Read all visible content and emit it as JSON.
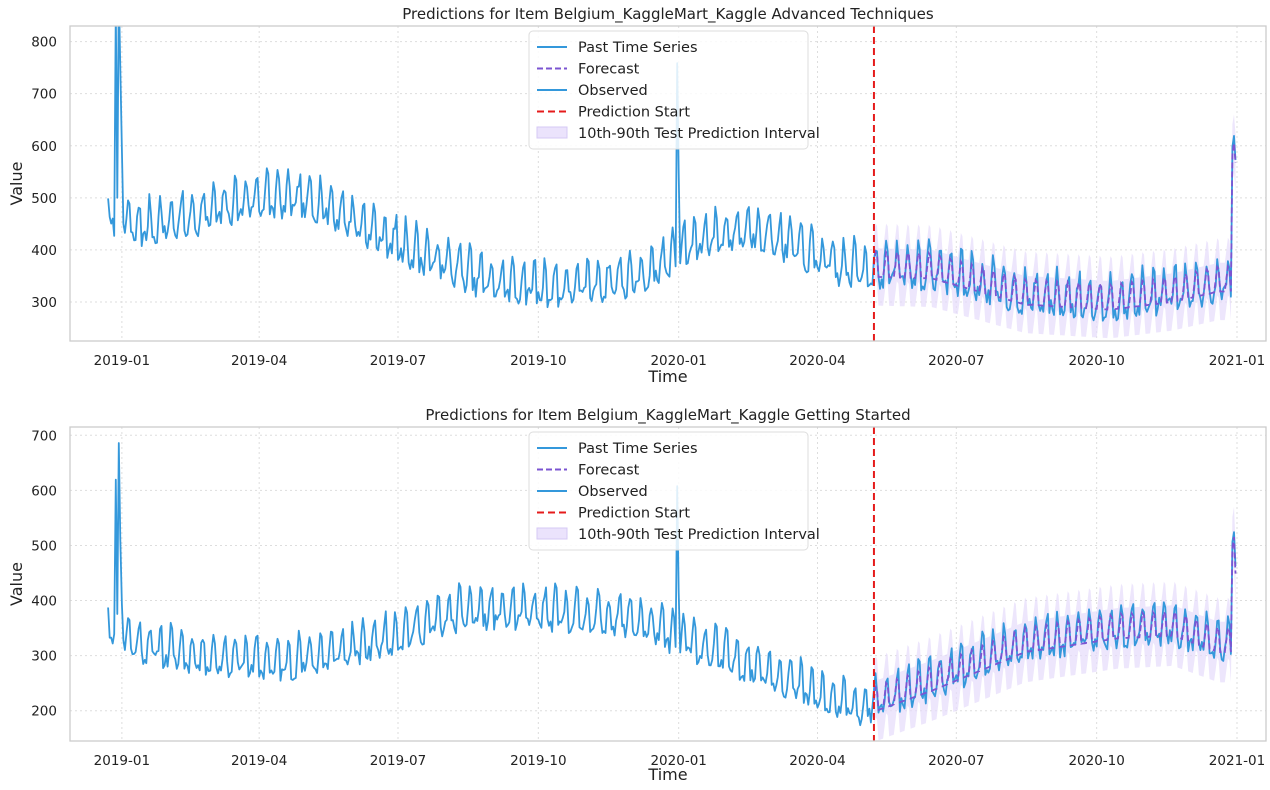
{
  "colors": {
    "observed": "#3498db",
    "past": "#3498db",
    "forecast": "#7b54d2",
    "prediction_start": "#e51b1b",
    "interval_fill": "#e6dcfb",
    "grid": "#dddddd",
    "axes_border": "#cccccc"
  },
  "chart_data": [
    {
      "type": "line",
      "title": "Predictions for Item Belgium_KaggleMart_Kaggle Advanced Techniques",
      "xlabel": "Time",
      "ylabel": "Value",
      "x_axis_type": "date",
      "xlim": [
        "2018-11-28",
        "2021-01-20"
      ],
      "ylim": [
        225,
        830
      ],
      "x_ticks": [
        "2019-01-01",
        "2019-04-01",
        "2019-07-01",
        "2019-10-01",
        "2020-01-01",
        "2020-04-01",
        "2020-07-01",
        "2020-10-01",
        "2021-01-01"
      ],
      "x_tick_labels": [
        "2019-01",
        "2019-04",
        "2019-07",
        "2019-10",
        "2020-01",
        "2020-04",
        "2020-07",
        "2020-10",
        "2021-01"
      ],
      "y_ticks": [
        300,
        400,
        500,
        600,
        700,
        800
      ],
      "y_tick_labels": [
        "300",
        "400",
        "500",
        "600",
        "700",
        "800"
      ],
      "grid": true,
      "legend_position": "top-center",
      "legend": [
        "Past Time Series",
        "Forecast",
        "Observed",
        "Prediction Start",
        "10th-90th Test Prediction Interval"
      ],
      "prediction_start": "2020-05-08",
      "series_params": {
        "start": "2018-12-23",
        "split": "2020-05-08",
        "end": "2020-12-31",
        "anchors": [
          [
            "2018-12-23",
            470
          ],
          [
            "2019-01-10",
            440
          ],
          [
            "2019-02-15",
            460
          ],
          [
            "2019-04-01",
            500
          ],
          [
            "2019-05-10",
            490
          ],
          [
            "2019-07-01",
            410
          ],
          [
            "2019-09-01",
            335
          ],
          [
            "2019-10-20",
            325
          ],
          [
            "2019-12-10",
            350
          ],
          [
            "2020-01-15",
            420
          ],
          [
            "2020-02-20",
            440
          ],
          [
            "2020-04-15",
            365
          ],
          [
            "2020-06-15",
            360
          ],
          [
            "2020-08-15",
            310
          ],
          [
            "2020-10-10",
            300
          ],
          [
            "2020-11-20",
            315
          ],
          [
            "2020-12-20",
            335
          ]
        ],
        "weekly_amplitude": 60,
        "spikes": [
          [
            "2018-12-28",
            380
          ],
          [
            "2018-12-30",
            420
          ],
          [
            "2018-12-31",
            330
          ],
          [
            "2019-01-01",
            140
          ],
          [
            "2019-12-31",
            380
          ],
          [
            "2020-01-01",
            180
          ],
          [
            "2020-12-29",
            280
          ],
          [
            "2020-12-30",
            300
          ],
          [
            "2020-12-31",
            260
          ]
        ],
        "noise": 18,
        "seed": 7
      }
    },
    {
      "type": "line",
      "title": "Predictions for Item Belgium_KaggleMart_Kaggle Getting Started",
      "xlabel": "Time",
      "ylabel": "Value",
      "x_axis_type": "date",
      "xlim": [
        "2018-11-28",
        "2021-01-20"
      ],
      "ylim": [
        145,
        715
      ],
      "x_ticks": [
        "2019-01-01",
        "2019-04-01",
        "2019-07-01",
        "2019-10-01",
        "2020-01-01",
        "2020-04-01",
        "2020-07-01",
        "2020-10-01",
        "2021-01-01"
      ],
      "x_tick_labels": [
        "2019-01",
        "2019-04",
        "2019-07",
        "2019-10",
        "2020-01",
        "2020-04",
        "2020-07",
        "2020-10",
        "2021-01"
      ],
      "y_ticks": [
        200,
        300,
        400,
        500,
        600,
        700
      ],
      "y_tick_labels": [
        "200",
        "300",
        "400",
        "500",
        "600",
        "700"
      ],
      "grid": true,
      "legend_position": "top-center",
      "legend": [
        "Past Time Series",
        "Forecast",
        "Observed",
        "Prediction Start",
        "10th-90th Test Prediction Interval"
      ],
      "prediction_start": "2020-05-08",
      "series_params": {
        "start": "2018-12-23",
        "split": "2020-05-08",
        "end": "2020-12-31",
        "anchors": [
          [
            "2018-12-23",
            360
          ],
          [
            "2019-01-10",
            320
          ],
          [
            "2019-02-15",
            300
          ],
          [
            "2019-04-15",
            285
          ],
          [
            "2019-06-01",
            310
          ],
          [
            "2019-08-15",
            380
          ],
          [
            "2019-10-15",
            375
          ],
          [
            "2019-12-01",
            365
          ],
          [
            "2020-01-20",
            310
          ],
          [
            "2020-03-01",
            270
          ],
          [
            "2020-04-10",
            215
          ],
          [
            "2020-05-01",
            205
          ],
          [
            "2020-06-15",
            250
          ],
          [
            "2020-08-15",
            320
          ],
          [
            "2020-10-15",
            345
          ],
          [
            "2020-11-20",
            350
          ],
          [
            "2020-12-20",
            320
          ]
        ],
        "weekly_amplitude": 55,
        "spikes": [
          [
            "2018-12-28",
            250
          ],
          [
            "2018-12-30",
            300
          ],
          [
            "2018-12-31",
            200
          ],
          [
            "2019-01-01",
            80
          ],
          [
            "2019-12-31",
            280
          ],
          [
            "2020-01-01",
            100
          ],
          [
            "2020-12-29",
            200
          ],
          [
            "2020-12-30",
            220
          ],
          [
            "2020-12-31",
            150
          ]
        ],
        "noise": 15,
        "seed": 11
      }
    }
  ]
}
